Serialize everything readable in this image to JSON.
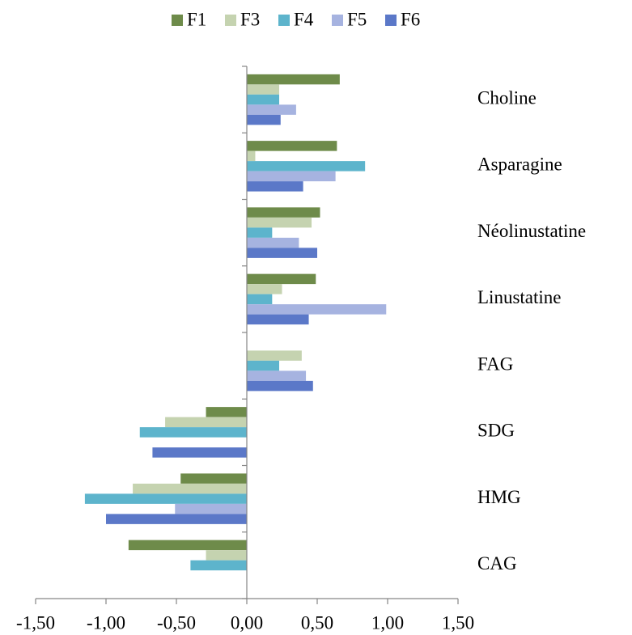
{
  "chart_data": {
    "type": "hbar",
    "categories": [
      "Choline",
      "Asparagine",
      "Néolinustatine",
      "Linustatine",
      "FAG",
      "SDG",
      "HMG",
      "CAG"
    ],
    "series": [
      {
        "name": "F1",
        "color": "#6e8b4a",
        "values": [
          0.66,
          0.64,
          0.52,
          0.49,
          0,
          -0.29,
          -0.47,
          -0.84
        ]
      },
      {
        "name": "F3",
        "color": "#c5d3b0",
        "values": [
          0.23,
          0.06,
          0.46,
          0.25,
          0.39,
          -0.58,
          -0.81,
          -0.29
        ]
      },
      {
        "name": "F4",
        "color": "#5db4cc",
        "values": [
          0.23,
          0.84,
          0.18,
          0.18,
          0.23,
          -0.76,
          -1.15,
          -0.4
        ]
      },
      {
        "name": "F5",
        "color": "#a6b3e0",
        "values": [
          0.35,
          0.63,
          0.37,
          0.99,
          0.42,
          0,
          -0.51,
          0
        ]
      },
      {
        "name": "F6",
        "color": "#5b78c8",
        "values": [
          0.24,
          0.4,
          0.5,
          0.44,
          0.47,
          -0.67,
          -1.0,
          0
        ]
      }
    ],
    "xlim": [
      -1.5,
      1.5
    ],
    "xticks": [
      {
        "value": -1.5,
        "label": "-1,50"
      },
      {
        "value": -1,
        "label": "-1,00"
      },
      {
        "value": -0.5,
        "label": "-0,50"
      },
      {
        "value": 0,
        "label": "0,00"
      },
      {
        "value": 0.5,
        "label": "0,50"
      },
      {
        "value": 1,
        "label": "1,00"
      },
      {
        "value": 1.5,
        "label": "1,50"
      }
    ],
    "legend": "top"
  }
}
